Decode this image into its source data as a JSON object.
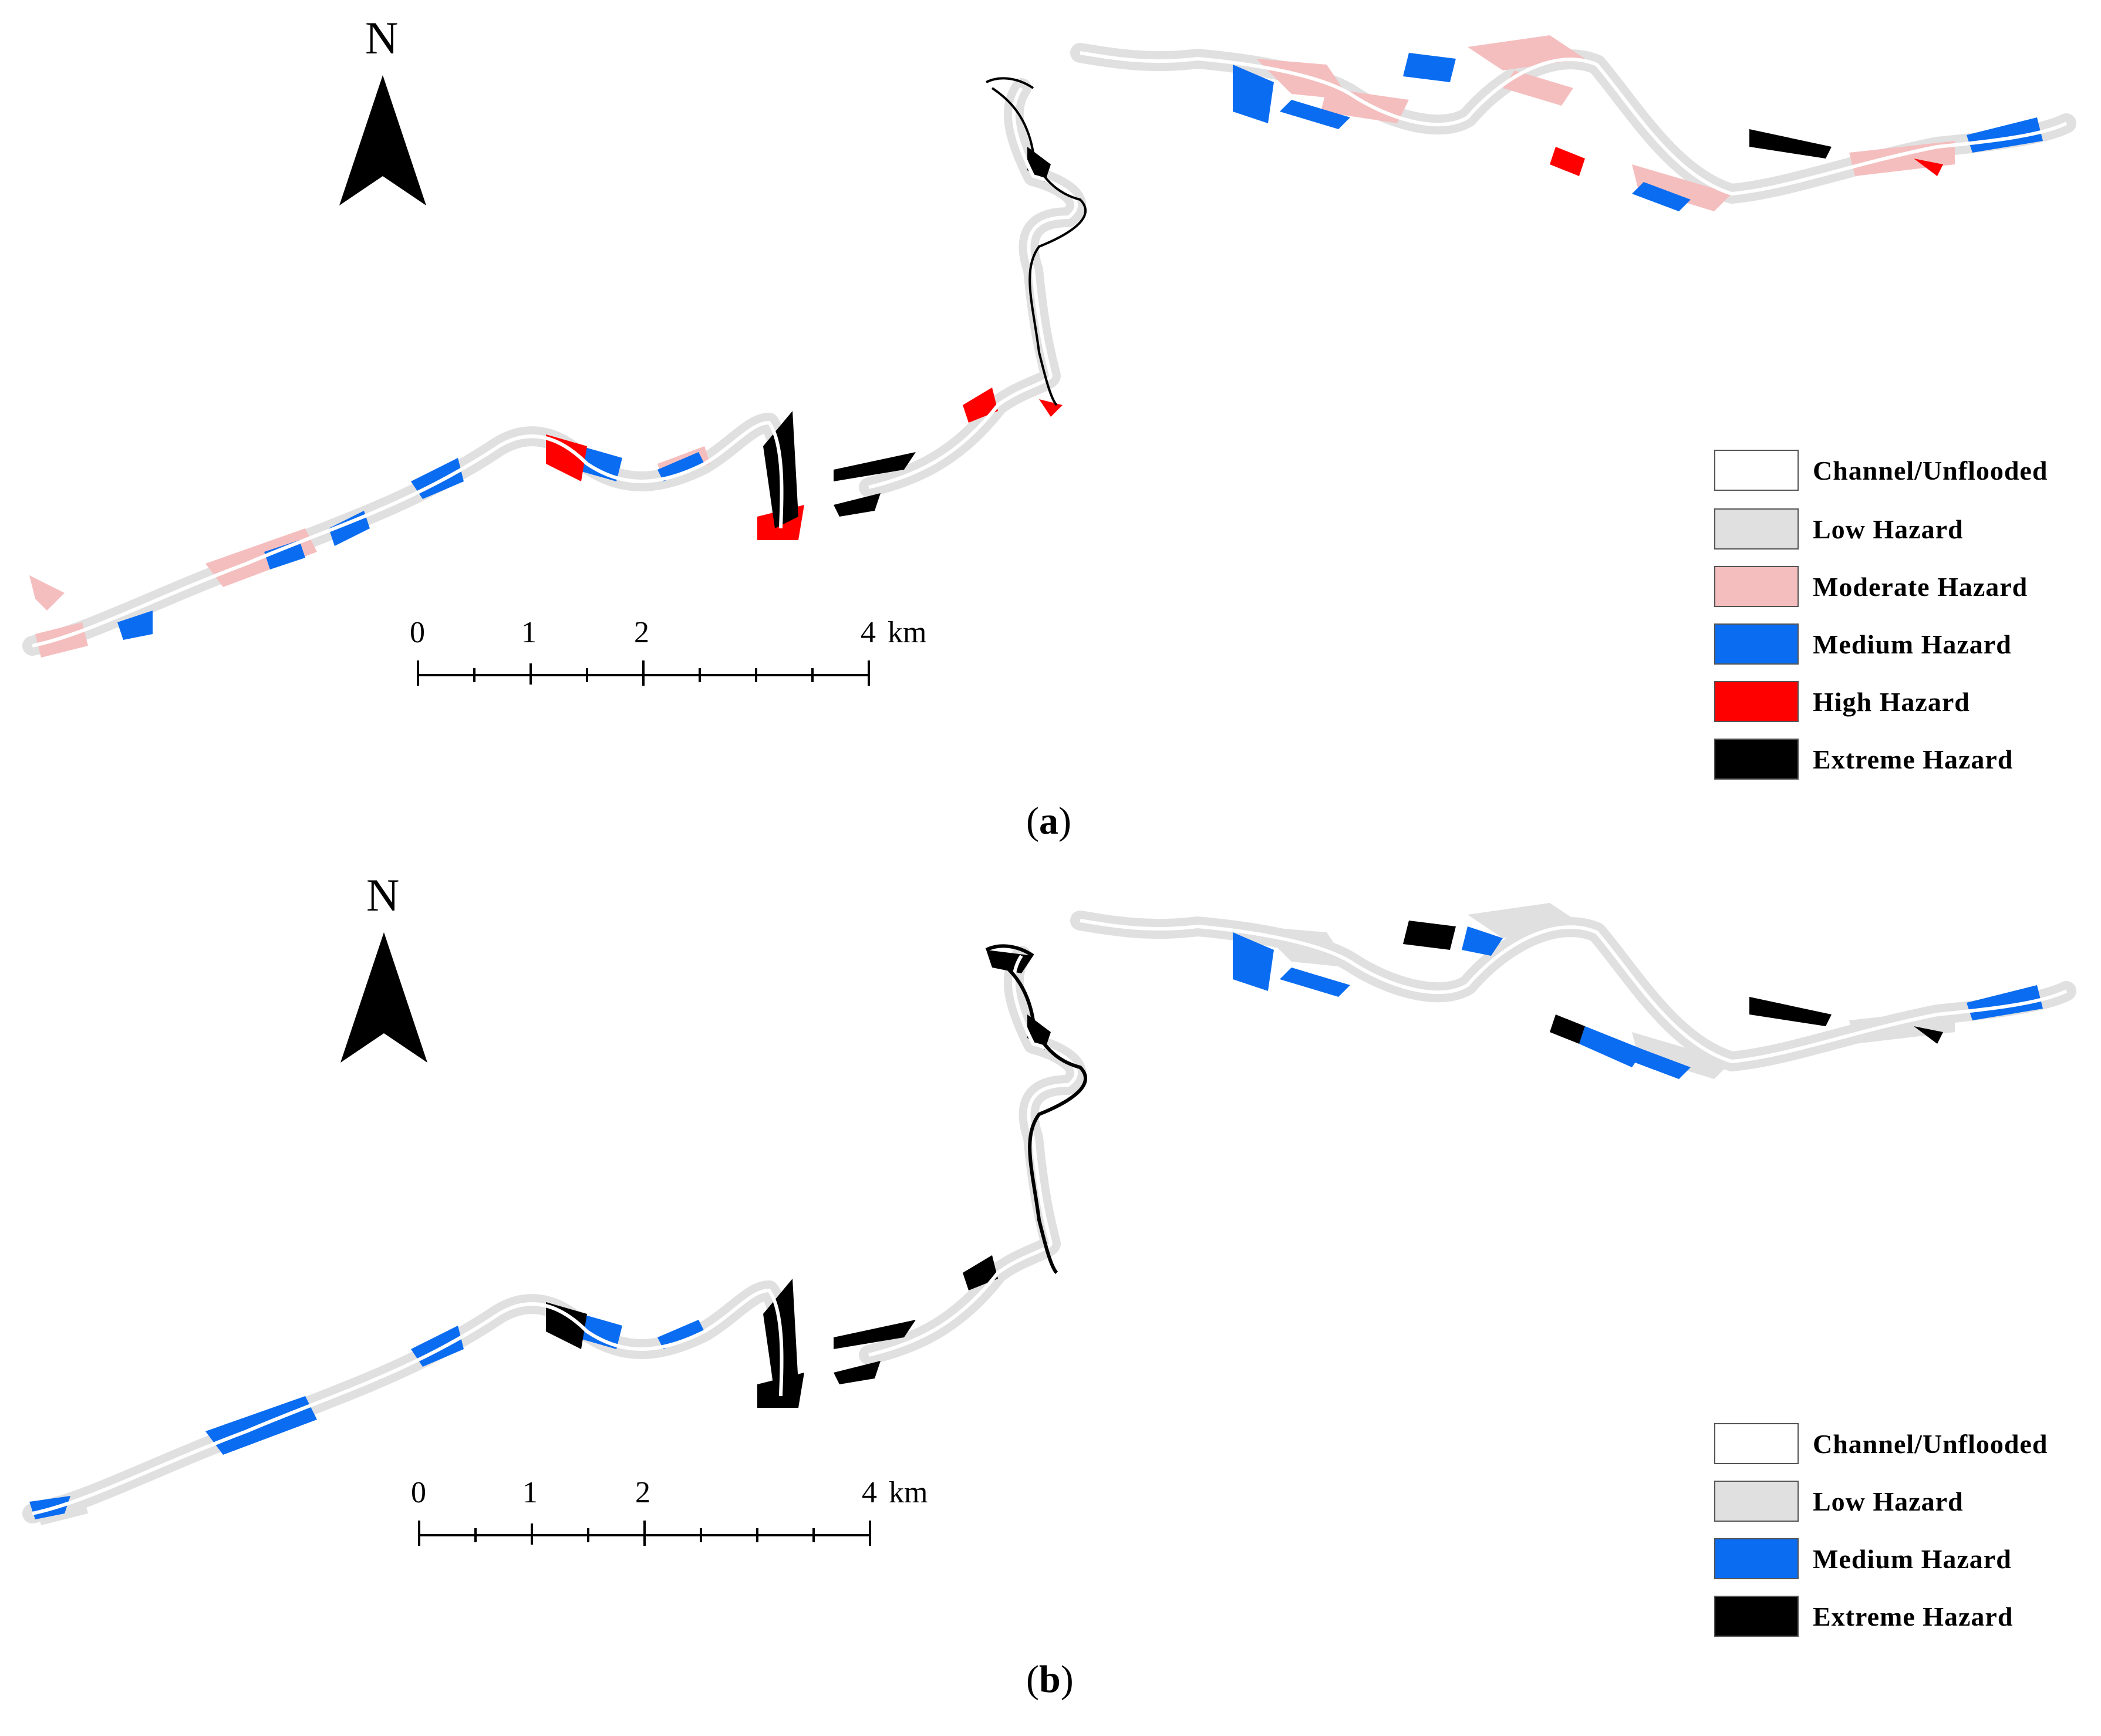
{
  "colors": {
    "channel": "#ffffff",
    "low": "#e0e0e0",
    "moderate": "#f5bebe",
    "medium": "#0a6cf0",
    "high": "#ff0000",
    "extreme": "#000000"
  },
  "north_arrow": {
    "letter": "N",
    "icon": "north-arrow-icon"
  },
  "scale_bar": {
    "labels": [
      "0",
      "1",
      "2",
      "4"
    ],
    "unit": "km"
  },
  "panels": [
    {
      "label": "a",
      "legend": [
        {
          "label": "Channel/Unflooded",
          "color": "#ffffff"
        },
        {
          "label": "Low Hazard",
          "color": "#e0e0e0"
        },
        {
          "label": "Moderate Hazard",
          "color": "#f5bebe"
        },
        {
          "label": "Medium Hazard",
          "color": "#0a6cf0"
        },
        {
          "label": "High Hazard",
          "color": "#ff0000"
        },
        {
          "label": "Extreme Hazard",
          "color": "#000000"
        }
      ]
    },
    {
      "label": "b",
      "legend": [
        {
          "label": "Channel/Unflooded",
          "color": "#ffffff"
        },
        {
          "label": "Low Hazard",
          "color": "#e0e0e0"
        },
        {
          "label": "Medium Hazard",
          "color": "#0a6cf0"
        },
        {
          "label": "Extreme Hazard",
          "color": "#000000"
        }
      ]
    }
  ]
}
